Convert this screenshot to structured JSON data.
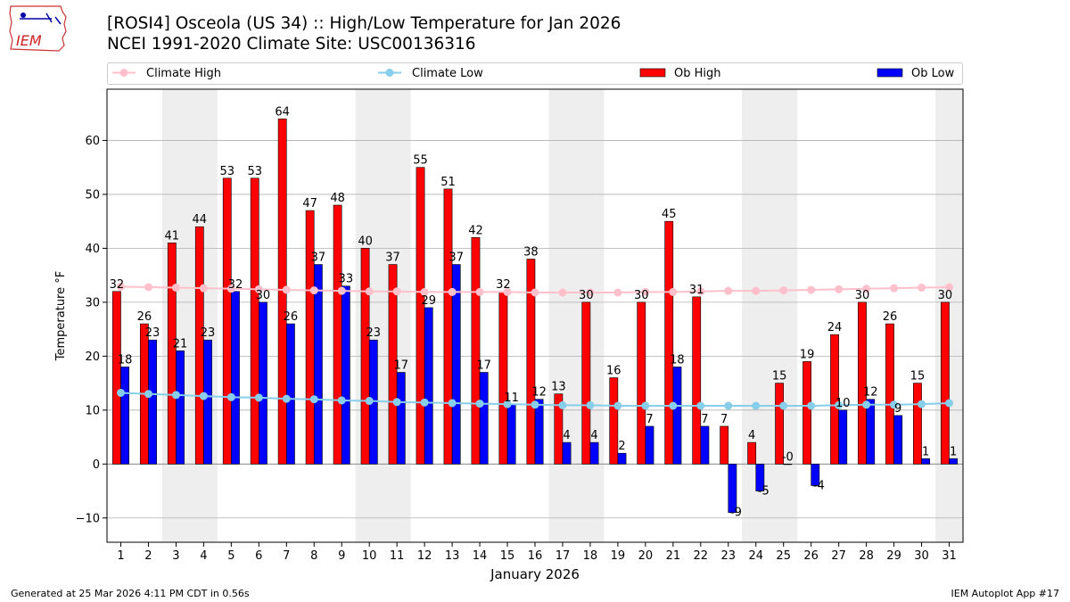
{
  "header": {
    "logo_text": "IEM",
    "title_line1": "[ROSI4] Osceola (US 34) :: High/Low Temperature for Jan 2026",
    "title_line2": "NCEI 1991-2020 Climate Site: USC00136316"
  },
  "footer": {
    "generated": "Generated at 25 Mar 2026 4:11 PM CDT in 0.56s",
    "app": "IEM Autoplot App #17"
  },
  "colors": {
    "ob_high": "#ff0000",
    "ob_low": "#0000ff",
    "climate_high": "#ffc0cb",
    "climate_low": "#87ceeb",
    "weekend_band": "#eeeeee",
    "grid": "#b0b0b0"
  },
  "chart_data": {
    "type": "bar",
    "xlabel": "January 2026",
    "ylabel": "Temperature °F",
    "ylim": [
      -14.5,
      69.5
    ],
    "yticks": [
      -10,
      0,
      10,
      20,
      30,
      40,
      50,
      60
    ],
    "grid": "horizontal",
    "legend_position": "top",
    "categories": [
      "1",
      "2",
      "3",
      "4",
      "5",
      "6",
      "7",
      "8",
      "9",
      "10",
      "11",
      "12",
      "13",
      "14",
      "15",
      "16",
      "17",
      "18",
      "19",
      "20",
      "21",
      "22",
      "23",
      "24",
      "25",
      "26",
      "27",
      "28",
      "29",
      "30",
      "31"
    ],
    "shaded_days": [
      [
        3,
        4
      ],
      [
        10,
        11
      ],
      [
        17,
        18
      ],
      [
        24,
        25
      ],
      [
        31,
        31
      ]
    ],
    "series": [
      {
        "name": "Climate High",
        "kind": "line",
        "values": [
          32.9,
          32.8,
          32.7,
          32.6,
          32.5,
          32.4,
          32.3,
          32.2,
          32.1,
          32.0,
          32.0,
          31.9,
          31.9,
          31.9,
          31.9,
          31.8,
          31.8,
          31.8,
          31.8,
          31.9,
          31.9,
          32.0,
          32.1,
          32.1,
          32.2,
          32.3,
          32.4,
          32.5,
          32.6,
          32.7,
          32.8
        ]
      },
      {
        "name": "Climate Low",
        "kind": "line",
        "values": [
          13.2,
          13.0,
          12.8,
          12.6,
          12.4,
          12.3,
          12.1,
          12.0,
          11.8,
          11.7,
          11.5,
          11.4,
          11.3,
          11.2,
          11.1,
          11.0,
          10.9,
          10.9,
          10.8,
          10.8,
          10.8,
          10.8,
          10.8,
          10.8,
          10.8,
          10.8,
          10.9,
          11.0,
          11.0,
          11.1,
          11.3
        ]
      },
      {
        "name": "Ob High",
        "kind": "bar",
        "values": [
          32,
          26,
          41,
          44,
          53,
          53,
          64,
          47,
          48,
          40,
          37,
          55,
          51,
          42,
          32,
          38,
          13,
          30,
          16,
          30,
          45,
          31,
          7,
          4,
          15,
          19,
          24,
          30,
          26,
          15,
          30
        ],
        "labels": [
          "32",
          "26",
          "41",
          "44",
          "53",
          "53",
          "64",
          "47",
          "48",
          "40",
          "37",
          "55",
          "51",
          "42",
          "32",
          "38",
          "13",
          "30",
          "16",
          "30",
          "45",
          "31",
          "7",
          "4",
          "15",
          "19",
          "24",
          "30",
          "26",
          "15",
          "30"
        ]
      },
      {
        "name": "Ob Low",
        "kind": "bar",
        "values": [
          18,
          23,
          21,
          23,
          32,
          30,
          26,
          37,
          33,
          23,
          17,
          29,
          37,
          17,
          11,
          12,
          4,
          4,
          2,
          7,
          18,
          7,
          -9,
          -5,
          0,
          -4,
          10,
          12,
          9,
          1,
          1
        ],
        "labels": [
          "18",
          "23",
          "21",
          "23",
          "32",
          "30",
          "26",
          "37",
          "33",
          "23",
          "17",
          "29",
          "37",
          "17",
          "11",
          "12",
          "4",
          "4",
          "2",
          "7",
          "18",
          "7",
          "-9",
          "-5",
          "-0",
          "-4",
          "10",
          "12",
          "9",
          "1",
          "1"
        ]
      }
    ]
  }
}
